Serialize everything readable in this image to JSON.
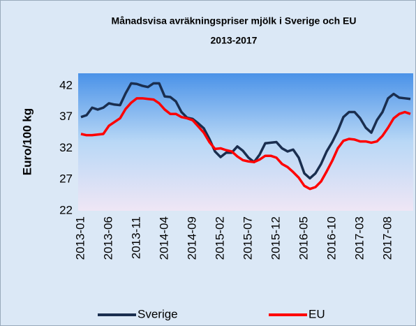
{
  "chart_data": {
    "type": "line",
    "title": "Månadsvisa avräkningspriser mjölk i Sverige och EU",
    "subtitle": "2013-2017",
    "y_label": "Euro/100 kg",
    "categories": [
      "2013-01",
      null,
      null,
      null,
      null,
      "2013-06",
      null,
      null,
      null,
      null,
      "2013-11",
      null,
      null,
      null,
      null,
      "2014-04",
      null,
      null,
      null,
      null,
      "2014-09",
      null,
      null,
      null,
      null,
      "2015-02",
      null,
      null,
      null,
      null,
      "2015-07",
      null,
      null,
      null,
      null,
      "2015-12",
      null,
      null,
      null,
      null,
      "2016-05",
      null,
      null,
      null,
      null,
      "2016-10",
      null,
      null,
      null,
      null,
      "2017-03",
      null,
      null,
      null,
      null,
      "2017-08",
      null,
      null,
      null,
      null
    ],
    "series": [
      {
        "name": "Sverige",
        "color": "#1a2e4f",
        "values": [
          37.0,
          37.3,
          38.5,
          38.2,
          38.5,
          39.2,
          39.0,
          38.9,
          40.8,
          42.4,
          42.3,
          42.0,
          41.8,
          42.4,
          42.4,
          40.3,
          40.2,
          39.5,
          37.8,
          36.9,
          36.7,
          36.0,
          35.2,
          33.5,
          31.5,
          30.6,
          31.3,
          31.3,
          32.3,
          31.6,
          30.5,
          29.8,
          31.0,
          32.8,
          32.9,
          33.0,
          32.0,
          31.5,
          31.8,
          30.5,
          28.0,
          27.2,
          28.0,
          29.5,
          31.5,
          33.0,
          34.8,
          37.0,
          37.8,
          37.8,
          36.8,
          35.3,
          34.5,
          36.5,
          37.8,
          40.0,
          40.7,
          40.1,
          40.0,
          39.9
        ]
      },
      {
        "name": "EU",
        "color": "#ff0000",
        "values": [
          34.3,
          34.1,
          34.1,
          34.2,
          34.3,
          35.6,
          36.2,
          36.8,
          38.3,
          39.3,
          40.0,
          40.0,
          39.9,
          39.8,
          39.2,
          38.2,
          37.5,
          37.5,
          37.0,
          36.8,
          36.5,
          35.5,
          34.5,
          33.0,
          31.9,
          32.0,
          31.7,
          31.5,
          30.7,
          30.1,
          29.9,
          29.8,
          30.2,
          30.8,
          30.8,
          30.5,
          29.5,
          29.0,
          28.2,
          27.3,
          26.0,
          25.5,
          25.8,
          26.7,
          28.3,
          30.0,
          32.0,
          33.2,
          33.5,
          33.4,
          33.1,
          33.1,
          32.9,
          33.1,
          34.0,
          35.3,
          36.8,
          37.5,
          37.8,
          37.5
        ]
      }
    ],
    "ylim": [
      22,
      44
    ],
    "yticks": [
      22,
      27,
      32,
      37,
      42
    ],
    "grid": false
  }
}
